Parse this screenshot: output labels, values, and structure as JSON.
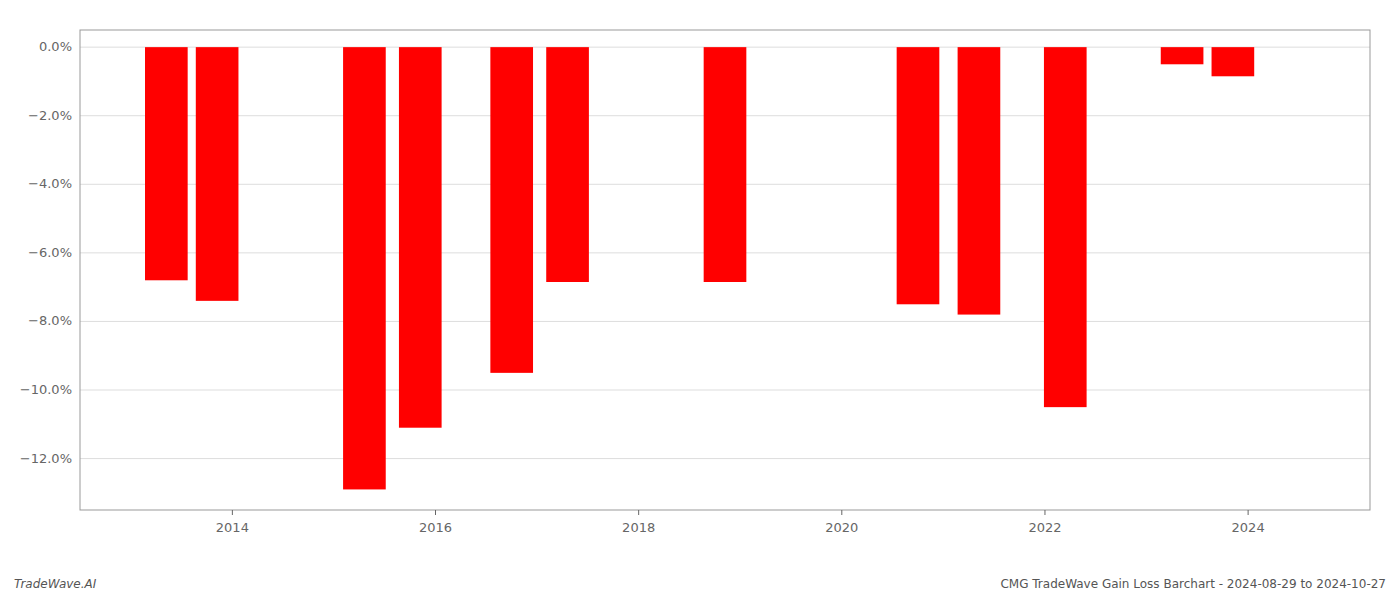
{
  "chart_data": {
    "type": "bar",
    "x": [
      2013.35,
      2013.85,
      2015.3,
      2015.85,
      2016.75,
      2017.3,
      2018.85,
      2020.75,
      2021.35,
      2022.2,
      2023.35,
      2023.85
    ],
    "values": [
      -6.8,
      -7.4,
      -12.9,
      -11.1,
      -9.5,
      -6.85,
      -6.85,
      -7.5,
      -7.8,
      -10.5,
      -0.5,
      -0.85
    ],
    "color": "#ff0000",
    "xlim": [
      2012.5,
      2025.2
    ],
    "xticks": [
      2014,
      2016,
      2018,
      2020,
      2022,
      2024
    ],
    "ylim": [
      -13.5,
      0.5
    ],
    "yticks": [
      {
        "value": 0.0,
        "label": "0.0%"
      },
      {
        "value": -2.0,
        "label": "−2.0%"
      },
      {
        "value": -4.0,
        "label": "−4.0%"
      },
      {
        "value": -6.0,
        "label": "−6.0%"
      },
      {
        "value": -8.0,
        "label": "−8.0%"
      },
      {
        "value": -10.0,
        "label": "−10.0%"
      },
      {
        "value": -12.0,
        "label": "−12.0%"
      }
    ],
    "grid": true,
    "annotations": [
      "TradeWave.AI",
      "CMG TradeWave Gain Loss Barchart - 2024-08-29 to 2024-10-27"
    ]
  }
}
